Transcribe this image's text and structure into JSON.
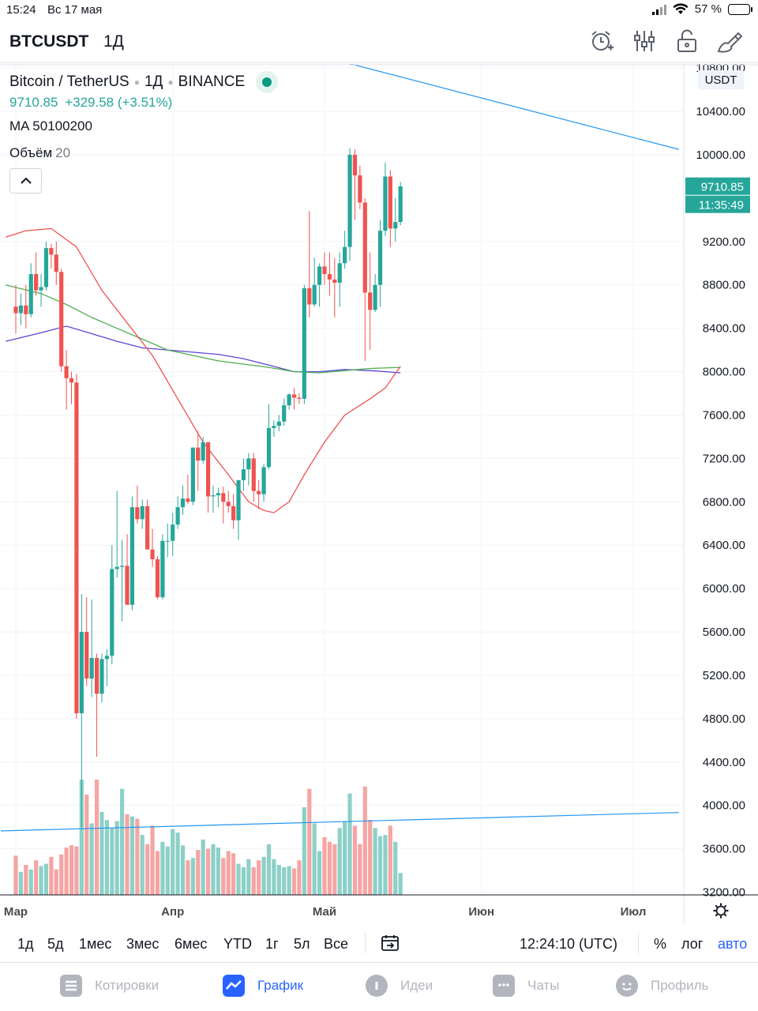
{
  "status_bar": {
    "time": "15:24",
    "date": "Вс 17 мая",
    "battery": "57 %",
    "battery_level": 0.57
  },
  "header": {
    "symbol": "BTCUSDT",
    "interval": "1Д",
    "icons": [
      "alarm-add-icon",
      "indicators-icon",
      "unlock-icon",
      "drawing-tools-icon"
    ]
  },
  "legend": {
    "name": "Bitcoin / TetherUS",
    "interval": "1Д",
    "exchange": "BINANCE",
    "price": "9710.85",
    "change": "+329.58 (+3.51%)",
    "ma": "MA 50100200",
    "volume_label": "Объём",
    "volume_period": "20"
  },
  "chart_data": {
    "type": "candlestick",
    "currency": "USDT",
    "last_price_label": "9710.85",
    "countdown_label": "11:35:49",
    "ylim": [
      3150,
      10900
    ],
    "y_ticks": [
      "10800.00",
      "10400.00",
      "10000.00",
      "9200.00",
      "8800.00",
      "8400.00",
      "8000.00",
      "7600.00",
      "7200.00",
      "6800.00",
      "6400.00",
      "6000.00",
      "5600.00",
      "5200.00",
      "4800.00",
      "4400.00",
      "4000.00",
      "3600.00",
      "3200.00"
    ],
    "x_ticks": [
      "Мар",
      "Апр",
      "Май",
      "Июн",
      "Июл"
    ],
    "x_tick_days": [
      0,
      31,
      61,
      92,
      122
    ],
    "colors": {
      "up": "#26a69a",
      "down": "#ef5350",
      "up_volume": "#8dd0c8",
      "down_volume": "#f5a5a3",
      "ma50": "#ef5350",
      "ma100": "#4caf50",
      "ma200": "#5b47d6",
      "trendline": "#2196f3"
    },
    "candles": [
      {
        "d": 0,
        "o": 8600,
        "h": 8800,
        "l": 8350,
        "c": 8540
      },
      {
        "d": 1,
        "o": 8540,
        "h": 8720,
        "l": 8430,
        "c": 8610
      },
      {
        "d": 2,
        "o": 8610,
        "h": 8800,
        "l": 8400,
        "c": 8530
      },
      {
        "d": 3,
        "o": 8530,
        "h": 9000,
        "l": 8500,
        "c": 8900
      },
      {
        "d": 4,
        "o": 8900,
        "h": 9100,
        "l": 8700,
        "c": 8750
      },
      {
        "d": 5,
        "o": 8750,
        "h": 8900,
        "l": 8600,
        "c": 8780
      },
      {
        "d": 6,
        "o": 8780,
        "h": 9200,
        "l": 8750,
        "c": 9140
      },
      {
        "d": 7,
        "o": 9140,
        "h": 9180,
        "l": 8950,
        "c": 9080
      },
      {
        "d": 8,
        "o": 9080,
        "h": 9200,
        "l": 8800,
        "c": 8920
      },
      {
        "d": 9,
        "o": 8920,
        "h": 8950,
        "l": 8000,
        "c": 8050
      },
      {
        "d": 10,
        "o": 8050,
        "h": 8200,
        "l": 7650,
        "c": 7940
      },
      {
        "d": 11,
        "o": 7940,
        "h": 8000,
        "l": 7700,
        "c": 7900
      },
      {
        "d": 12,
        "o": 7900,
        "h": 7980,
        "l": 4800,
        "c": 4850
      },
      {
        "d": 13,
        "o": 4850,
        "h": 5950,
        "l": 3800,
        "c": 5600
      },
      {
        "d": 14,
        "o": 5600,
        "h": 5920,
        "l": 5100,
        "c": 5170
      },
      {
        "d": 15,
        "o": 5170,
        "h": 5900,
        "l": 5000,
        "c": 5360
      },
      {
        "d": 16,
        "o": 5360,
        "h": 5400,
        "l": 4450,
        "c": 5030
      },
      {
        "d": 17,
        "o": 5030,
        "h": 5400,
        "l": 4950,
        "c": 5350
      },
      {
        "d": 18,
        "o": 5350,
        "h": 5440,
        "l": 5100,
        "c": 5380
      },
      {
        "d": 19,
        "o": 5380,
        "h": 6400,
        "l": 5300,
        "c": 6180
      },
      {
        "d": 20,
        "o": 6180,
        "h": 6900,
        "l": 6100,
        "c": 6200
      },
      {
        "d": 21,
        "o": 6200,
        "h": 6450,
        "l": 5700,
        "c": 6210
      },
      {
        "d": 22,
        "o": 6210,
        "h": 6500,
        "l": 5900,
        "c": 5850
      },
      {
        "d": 23,
        "o": 5850,
        "h": 6850,
        "l": 5800,
        "c": 6750
      },
      {
        "d": 24,
        "o": 6750,
        "h": 6950,
        "l": 6600,
        "c": 6640
      },
      {
        "d": 25,
        "o": 6640,
        "h": 6820,
        "l": 6550,
        "c": 6760
      },
      {
        "d": 26,
        "o": 6760,
        "h": 6820,
        "l": 6400,
        "c": 6360
      },
      {
        "d": 27,
        "o": 6360,
        "h": 6550,
        "l": 6200,
        "c": 6270
      },
      {
        "d": 28,
        "o": 6270,
        "h": 6300,
        "l": 5900,
        "c": 5920
      },
      {
        "d": 29,
        "o": 5920,
        "h": 6500,
        "l": 5900,
        "c": 6440
      },
      {
        "d": 30,
        "o": 6440,
        "h": 6600,
        "l": 6290,
        "c": 6440
      },
      {
        "d": 31,
        "o": 6440,
        "h": 6700,
        "l": 6300,
        "c": 6590
      },
      {
        "d": 32,
        "o": 6590,
        "h": 6850,
        "l": 6550,
        "c": 6750
      },
      {
        "d": 33,
        "o": 6750,
        "h": 6950,
        "l": 6680,
        "c": 6830
      },
      {
        "d": 34,
        "o": 6830,
        "h": 7050,
        "l": 6780,
        "c": 6800
      },
      {
        "d": 35,
        "o": 6800,
        "h": 7300,
        "l": 6770,
        "c": 7300
      },
      {
        "d": 36,
        "o": 7300,
        "h": 7450,
        "l": 6900,
        "c": 7180
      },
      {
        "d": 37,
        "o": 7180,
        "h": 7400,
        "l": 7150,
        "c": 7350
      },
      {
        "d": 38,
        "o": 7350,
        "h": 7350,
        "l": 6700,
        "c": 6850
      },
      {
        "d": 39,
        "o": 6850,
        "h": 6950,
        "l": 6700,
        "c": 6860
      },
      {
        "d": 40,
        "o": 6860,
        "h": 6930,
        "l": 6750,
        "c": 6880
      },
      {
        "d": 41,
        "o": 6880,
        "h": 6940,
        "l": 6600,
        "c": 6800
      },
      {
        "d": 42,
        "o": 6800,
        "h": 6900,
        "l": 6700,
        "c": 6760
      },
      {
        "d": 43,
        "o": 6760,
        "h": 6870,
        "l": 6550,
        "c": 6630
      },
      {
        "d": 44,
        "o": 6630,
        "h": 7000,
        "l": 6450,
        "c": 7000
      },
      {
        "d": 45,
        "o": 7000,
        "h": 7200,
        "l": 6900,
        "c": 7100
      },
      {
        "d": 46,
        "o": 7100,
        "h": 7250,
        "l": 6950,
        "c": 7200
      },
      {
        "d": 47,
        "o": 7200,
        "h": 7250,
        "l": 6800,
        "c": 6900
      },
      {
        "d": 48,
        "o": 6900,
        "h": 7000,
        "l": 6730,
        "c": 6870
      },
      {
        "d": 49,
        "o": 6870,
        "h": 7150,
        "l": 6800,
        "c": 7120
      },
      {
        "d": 50,
        "o": 7120,
        "h": 7700,
        "l": 7100,
        "c": 7480
      },
      {
        "d": 51,
        "o": 7480,
        "h": 7550,
        "l": 7400,
        "c": 7500
      },
      {
        "d": 52,
        "o": 7500,
        "h": 7600,
        "l": 7450,
        "c": 7540
      },
      {
        "d": 53,
        "o": 7540,
        "h": 7750,
        "l": 7500,
        "c": 7690
      },
      {
        "d": 54,
        "o": 7690,
        "h": 7800,
        "l": 7650,
        "c": 7790
      },
      {
        "d": 55,
        "o": 7790,
        "h": 7850,
        "l": 7650,
        "c": 7760
      },
      {
        "d": 56,
        "o": 7760,
        "h": 7800,
        "l": 7700,
        "c": 7750
      },
      {
        "d": 57,
        "o": 7750,
        "h": 8800,
        "l": 7700,
        "c": 8770
      },
      {
        "d": 58,
        "o": 8770,
        "h": 9480,
        "l": 8500,
        "c": 8620
      },
      {
        "d": 59,
        "o": 8620,
        "h": 9050,
        "l": 8600,
        "c": 8800
      },
      {
        "d": 60,
        "o": 8800,
        "h": 9000,
        "l": 8600,
        "c": 8970
      },
      {
        "d": 61,
        "o": 8970,
        "h": 9100,
        "l": 8800,
        "c": 8900
      },
      {
        "d": 62,
        "o": 8900,
        "h": 9100,
        "l": 8700,
        "c": 8850
      },
      {
        "d": 63,
        "o": 8850,
        "h": 9050,
        "l": 8500,
        "c": 8820
      },
      {
        "d": 64,
        "o": 8820,
        "h": 9100,
        "l": 8600,
        "c": 9000
      },
      {
        "d": 65,
        "o": 9000,
        "h": 9300,
        "l": 8950,
        "c": 9150
      },
      {
        "d": 66,
        "o": 9150,
        "h": 10060,
        "l": 9020,
        "c": 10000
      },
      {
        "d": 67,
        "o": 10000,
        "h": 10050,
        "l": 9400,
        "c": 9810
      },
      {
        "d": 68,
        "o": 9810,
        "h": 9900,
        "l": 9500,
        "c": 9560
      },
      {
        "d": 69,
        "o": 9560,
        "h": 9600,
        "l": 8100,
        "c": 8730
      },
      {
        "d": 70,
        "o": 8730,
        "h": 9100,
        "l": 8200,
        "c": 8570
      },
      {
        "d": 71,
        "o": 8570,
        "h": 8900,
        "l": 8550,
        "c": 8800
      },
      {
        "d": 72,
        "o": 8800,
        "h": 9400,
        "l": 8600,
        "c": 9300
      },
      {
        "d": 73,
        "o": 9300,
        "h": 9930,
        "l": 9250,
        "c": 9800
      },
      {
        "d": 74,
        "o": 9800,
        "h": 9860,
        "l": 9150,
        "c": 9320
      },
      {
        "d": 75,
        "o": 9320,
        "h": 9600,
        "l": 9200,
        "c": 9380
      },
      {
        "d": 76,
        "o": 9380,
        "h": 9750,
        "l": 9350,
        "c": 9710
      }
    ],
    "volume_scale": 100,
    "volumes": [
      34,
      20,
      26,
      22,
      30,
      25,
      27,
      33,
      22,
      35,
      41,
      43,
      42,
      100,
      87,
      62,
      100,
      72,
      65,
      58,
      64,
      92,
      70,
      68,
      66,
      52,
      44,
      60,
      38,
      46,
      42,
      57,
      54,
      43,
      30,
      32,
      39,
      48,
      40,
      44,
      41,
      32,
      38,
      36,
      27,
      24,
      31,
      24,
      30,
      33,
      44,
      31,
      26,
      24,
      25,
      23,
      30,
      76,
      92,
      62,
      38,
      50,
      46,
      44,
      58,
      64,
      88,
      60,
      44,
      94,
      65,
      58,
      51,
      52,
      60,
      46,
      19
    ],
    "ma50": [
      [
        -2,
        9240
      ],
      [
        2,
        9300
      ],
      [
        7,
        9320
      ],
      [
        12,
        9150
      ],
      [
        17,
        8750
      ],
      [
        22,
        8450
      ],
      [
        27,
        8150
      ],
      [
        32,
        7750
      ],
      [
        37,
        7350
      ],
      [
        42,
        7050
      ],
      [
        46,
        6800
      ],
      [
        49,
        6720
      ],
      [
        51,
        6700
      ],
      [
        54,
        6800
      ],
      [
        57,
        7050
      ],
      [
        61,
        7350
      ],
      [
        65,
        7600
      ],
      [
        70,
        7750
      ],
      [
        73,
        7850
      ],
      [
        76,
        8050
      ]
    ],
    "ma100": [
      [
        -2,
        8800
      ],
      [
        5,
        8720
      ],
      [
        10,
        8620
      ],
      [
        15,
        8500
      ],
      [
        20,
        8400
      ],
      [
        25,
        8300
      ],
      [
        30,
        8200
      ],
      [
        35,
        8150
      ],
      [
        40,
        8100
      ],
      [
        45,
        8070
      ],
      [
        50,
        8040
      ],
      [
        55,
        8000
      ],
      [
        60,
        7990
      ],
      [
        65,
        8010
      ],
      [
        70,
        8030
      ],
      [
        76,
        8040
      ]
    ],
    "ma200": [
      [
        -2,
        8280
      ],
      [
        5,
        8360
      ],
      [
        10,
        8420
      ],
      [
        15,
        8350
      ],
      [
        20,
        8280
      ],
      [
        25,
        8220
      ],
      [
        30,
        8200
      ],
      [
        35,
        8180
      ],
      [
        40,
        8160
      ],
      [
        45,
        8120
      ],
      [
        50,
        8060
      ],
      [
        55,
        8000
      ],
      [
        60,
        8000
      ],
      [
        65,
        8020
      ],
      [
        70,
        8010
      ],
      [
        76,
        7990
      ]
    ],
    "trendlines": [
      [
        [
          57,
          10950
        ],
        [
          131,
          10050
        ]
      ],
      [
        [
          -3,
          3765
        ],
        [
          131,
          3935
        ]
      ]
    ]
  },
  "timeframes": [
    "1д",
    "5д",
    "1мес",
    "3мес",
    "6мес",
    "YTD",
    "1г",
    "5л",
    "Все"
  ],
  "toolbar": {
    "clock": "12:24:10 (UTC)",
    "percent": "%",
    "log": "лог",
    "auto": "авто"
  },
  "nav": [
    {
      "label": "Котировки",
      "icon": "quotes-icon",
      "active": false
    },
    {
      "label": "График",
      "icon": "chart-icon",
      "active": true
    },
    {
      "label": "Идеи",
      "icon": "ideas-icon",
      "active": false
    },
    {
      "label": "Чаты",
      "icon": "chats-icon",
      "active": false
    },
    {
      "label": "Профиль",
      "icon": "profile-icon",
      "active": false
    }
  ]
}
